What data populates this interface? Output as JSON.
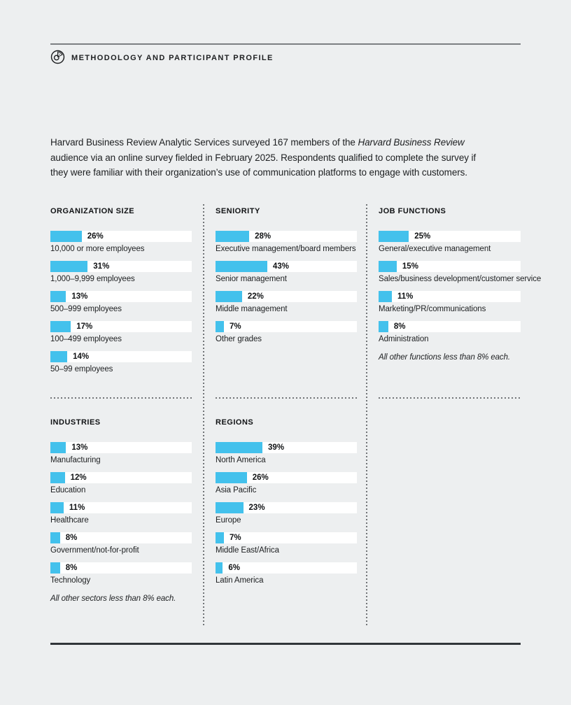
{
  "page": {
    "eyebrow": "METHODOLOGY AND PARTICIPANT PROFILE",
    "icon": "pie-chart-icon"
  },
  "intro": {
    "line1_text": "Harvard Business Review Analytic Services surveyed 167 members of the ",
    "line1_italic": "Harvard Business Review",
    "line2_text": "audience via an online survey fielded in February 2025. Respondents qualified to complete the survey if",
    "line3_text": "they were familiar with their organization’s use of communication platforms to engage with customers."
  },
  "colors": {
    "background": "#edeff0",
    "bar_fill": "#43c1ec",
    "bar_track": "#ffffff",
    "text": "#1d1f21",
    "rule_top": "#7c7f82",
    "rule_bottom": "#313539"
  },
  "layout_hints": {
    "bar_track_full_value": 117.5,
    "unit": "%"
  },
  "chart_data": [
    {
      "type": "bar",
      "title": "ORGANIZATION SIZE",
      "orientation": "horizontal",
      "categories": [
        "10,000 or more employees",
        "1,000–9,999 employees",
        "500–999 employees",
        "100–499 employees",
        "50–99 employees"
      ],
      "values": [
        26,
        31,
        13,
        17,
        14
      ],
      "unit": "%",
      "note": ""
    },
    {
      "type": "bar",
      "title": "SENIORITY",
      "orientation": "horizontal",
      "categories": [
        "Executive management/board members",
        "Senior management",
        "Middle management",
        "Other grades"
      ],
      "values": [
        28,
        43,
        22,
        7
      ],
      "unit": "%",
      "note": ""
    },
    {
      "type": "bar",
      "title": "JOB FUNCTIONS",
      "orientation": "horizontal",
      "categories": [
        "General/executive management",
        "Sales/business development/customer service",
        "Marketing/PR/communications",
        "Administration"
      ],
      "values": [
        25,
        15,
        11,
        8
      ],
      "unit": "%",
      "note": "All other functions less than 8% each."
    },
    {
      "type": "bar",
      "title": "INDUSTRIES",
      "orientation": "horizontal",
      "categories": [
        "Manufacturing",
        "Education",
        "Healthcare",
        "Government/not-for-profit",
        "Technology"
      ],
      "values": [
        13,
        12,
        11,
        8,
        8
      ],
      "unit": "%",
      "note": "All other sectors less than 8% each."
    },
    {
      "type": "bar",
      "title": "REGIONS",
      "orientation": "horizontal",
      "categories": [
        "North America",
        "Asia Pacific",
        "Europe",
        "Middle East/Africa",
        "Latin America"
      ],
      "values": [
        39,
        26,
        23,
        7,
        6
      ],
      "unit": "%",
      "note": ""
    }
  ]
}
